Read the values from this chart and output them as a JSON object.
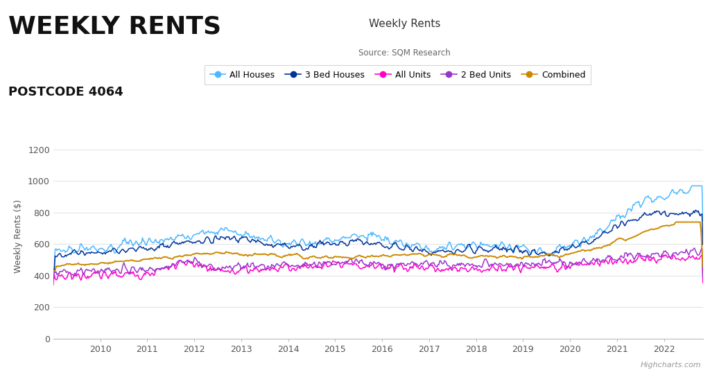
{
  "title": "Weekly Rents",
  "subtitle": "Source: SQM Research",
  "main_title": "WEEKLY RENTS",
  "sub_title2": "POSTCODE 4064",
  "ylabel": "Weekly Rents ($)",
  "ylim": [
    0,
    1300
  ],
  "yticks": [
    0,
    200,
    400,
    600,
    800,
    1000,
    1200
  ],
  "xstart": 2009.0,
  "xend": 2022.83,
  "background_color": "#ffffff",
  "plot_bg_color": "#ffffff",
  "grid_color": "#e0e0e0",
  "series": {
    "All Houses": {
      "color": "#4db8ff",
      "lw": 1.1
    },
    "3 Bed Houses": {
      "color": "#003399",
      "lw": 1.1
    },
    "All Units": {
      "color": "#ff00cc",
      "lw": 1.1
    },
    "2 Bed Units": {
      "color": "#9933cc",
      "lw": 1.1
    },
    "Combined": {
      "color": "#cc8800",
      "lw": 1.4
    }
  },
  "legend_order": [
    "All Houses",
    "3 Bed Houses",
    "All Units",
    "2 Bed Units",
    "Combined"
  ],
  "watermark": "Highcharts.com"
}
